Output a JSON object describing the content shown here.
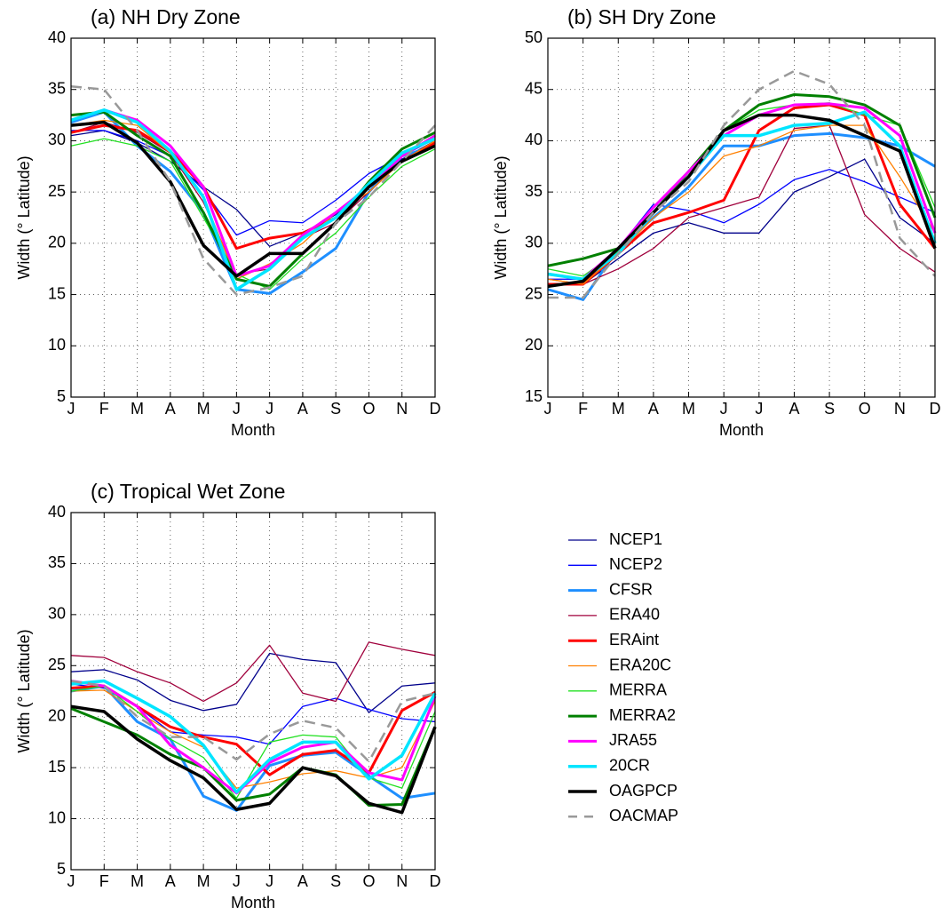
{
  "chart_data": [
    {
      "type": "line",
      "title": "(a)  NH Dry Zone",
      "x_label": "Month",
      "y_label": "Width (° Latitude)",
      "categories": [
        "J",
        "F",
        "M",
        "A",
        "M",
        "J",
        "J",
        "A",
        "S",
        "O",
        "N",
        "D"
      ],
      "ylim": [
        5,
        40
      ],
      "yticks": [
        5,
        10,
        15,
        20,
        25,
        30,
        35,
        40
      ],
      "grid": true,
      "series": [
        {
          "name": "NCEP1",
          "color": "#00008b",
          "width": 1.3,
          "values": [
            30.5,
            31.0,
            29.8,
            28.0,
            25.5,
            23.3,
            19.7,
            21.0,
            22.8,
            25.8,
            28.2,
            30.0
          ]
        },
        {
          "name": "NCEP2",
          "color": "#0000ff",
          "width": 1.3,
          "values": [
            31.0,
            31.0,
            30.0,
            28.5,
            25.2,
            20.8,
            22.2,
            22.0,
            24.2,
            26.8,
            28.5,
            30.2
          ]
        },
        {
          "name": "CFSR",
          "color": "#1e8fff",
          "width": 3,
          "values": [
            31.8,
            32.8,
            29.5,
            27.0,
            23.0,
            15.5,
            15.1,
            17.2,
            19.5,
            25.0,
            28.5,
            29.5
          ]
        },
        {
          "name": "ERA40",
          "color": "#a0003c",
          "width": 1.3,
          "values": [
            30.8,
            31.8,
            30.8,
            28.8,
            24.0,
            17.0,
            17.5,
            20.5,
            22.0,
            25.0,
            28.0,
            30.0
          ]
        },
        {
          "name": "ERAint",
          "color": "#ff0000",
          "width": 3,
          "values": [
            30.8,
            31.5,
            31.0,
            29.0,
            25.5,
            19.5,
            20.5,
            21.0,
            22.5,
            25.5,
            28.0,
            29.8
          ]
        },
        {
          "name": "ERA20C",
          "color": "#ff8000",
          "width": 1.3,
          "values": [
            31.5,
            32.0,
            31.5,
            28.8,
            24.5,
            16.5,
            18.0,
            20.0,
            23.0,
            25.0,
            28.0,
            30.0
          ]
        },
        {
          "name": "MERRA",
          "color": "#22e022",
          "width": 1.3,
          "values": [
            29.5,
            30.2,
            29.5,
            28.0,
            22.5,
            17.0,
            15.5,
            18.5,
            21.0,
            24.5,
            27.5,
            29.2
          ]
        },
        {
          "name": "MERRA2",
          "color": "#008000",
          "width": 3,
          "values": [
            32.5,
            32.8,
            30.5,
            28.5,
            23.0,
            16.5,
            15.8,
            19.0,
            22.0,
            26.0,
            29.2,
            30.8
          ]
        },
        {
          "name": "JRA55",
          "color": "#ff00ff",
          "width": 3,
          "values": [
            32.0,
            33.0,
            32.0,
            29.5,
            25.5,
            16.8,
            17.8,
            20.8,
            23.0,
            25.5,
            28.5,
            30.5
          ]
        },
        {
          "name": "20CR",
          "color": "#00e5ff",
          "width": 3.5,
          "values": [
            32.0,
            33.0,
            31.8,
            29.0,
            24.5,
            15.5,
            17.5,
            20.5,
            22.5,
            25.8,
            28.8,
            30.2
          ]
        },
        {
          "name": "OAGPCP",
          "color": "#000000",
          "width": 3.5,
          "values": [
            31.5,
            31.8,
            29.8,
            26.0,
            19.8,
            16.8,
            19.0,
            19.0,
            22.0,
            25.5,
            28.0,
            29.5
          ]
        },
        {
          "name": "OACMAP",
          "color": "#999999",
          "width": 2.5,
          "dash": true,
          "values": [
            35.3,
            35.0,
            31.0,
            26.0,
            18.5,
            15.0,
            15.7,
            16.8,
            22.0,
            24.5,
            28.0,
            31.5
          ]
        }
      ]
    },
    {
      "type": "line",
      "title": "(b)  SH Dry Zone",
      "x_label": "Month",
      "y_label": "Width (° Latitude)",
      "categories": [
        "J",
        "F",
        "M",
        "A",
        "M",
        "J",
        "J",
        "A",
        "S",
        "O",
        "N",
        "D"
      ],
      "ylim": [
        15,
        50
      ],
      "yticks": [
        15,
        20,
        25,
        30,
        35,
        40,
        45,
        50
      ],
      "grid": true,
      "series": [
        {
          "name": "NCEP1",
          "color": "#00008b",
          "width": 1.3,
          "values": [
            26.0,
            26.0,
            28.5,
            31.0,
            32.0,
            31.0,
            31.0,
            35.0,
            36.5,
            38.2,
            32.5,
            30.0
          ]
        },
        {
          "name": "NCEP2",
          "color": "#0000ff",
          "width": 1.3,
          "values": [
            26.5,
            26.5,
            29.5,
            33.8,
            33.2,
            32.0,
            33.8,
            36.2,
            37.2,
            36.0,
            34.5,
            33.0
          ]
        },
        {
          "name": "CFSR",
          "color": "#1e8fff",
          "width": 3,
          "values": [
            25.5,
            24.5,
            29.5,
            32.5,
            35.5,
            39.5,
            39.5,
            40.5,
            40.7,
            40.3,
            39.5,
            37.5
          ]
        },
        {
          "name": "ERA40",
          "color": "#a0003c",
          "width": 1.3,
          "values": [
            26.5,
            26.0,
            27.5,
            29.5,
            32.5,
            33.5,
            34.5,
            41.2,
            41.5,
            32.8,
            29.5,
            27.2
          ]
        },
        {
          "name": "ERAint",
          "color": "#ff0000",
          "width": 3,
          "values": [
            26.0,
            26.0,
            29.0,
            32.0,
            33.0,
            34.2,
            41.0,
            43.2,
            43.5,
            42.5,
            33.8,
            29.5
          ]
        },
        {
          "name": "ERA20C",
          "color": "#ff8000",
          "width": 1.3,
          "values": [
            26.5,
            26.0,
            29.0,
            32.5,
            35.0,
            38.5,
            39.5,
            41.0,
            41.5,
            41.5,
            36.5,
            31.0
          ]
        },
        {
          "name": "MERRA",
          "color": "#22e022",
          "width": 1.3,
          "values": [
            27.5,
            26.8,
            29.2,
            33.0,
            36.5,
            41.0,
            43.0,
            43.5,
            43.7,
            42.5,
            41.5,
            33.5
          ]
        },
        {
          "name": "MERRA2",
          "color": "#008000",
          "width": 3,
          "values": [
            27.8,
            28.5,
            29.5,
            33.0,
            37.0,
            41.0,
            43.5,
            44.5,
            44.3,
            43.5,
            41.5,
            32.5
          ]
        },
        {
          "name": "JRA55",
          "color": "#ff00ff",
          "width": 3,
          "values": [
            27.0,
            26.5,
            29.5,
            33.5,
            37.0,
            40.5,
            42.5,
            43.5,
            43.6,
            43.2,
            40.5,
            31.0
          ]
        },
        {
          "name": "20CR",
          "color": "#00e5ff",
          "width": 3.5,
          "values": [
            27.0,
            26.5,
            29.0,
            33.0,
            36.5,
            40.5,
            40.5,
            41.5,
            41.7,
            42.8,
            39.5,
            30.0
          ]
        },
        {
          "name": "OAGPCP",
          "color": "#000000",
          "width": 3.5,
          "values": [
            25.8,
            26.3,
            29.5,
            33.0,
            36.5,
            41.0,
            42.5,
            42.5,
            42.0,
            40.5,
            39.0,
            29.5
          ]
        },
        {
          "name": "OACMAP",
          "color": "#999999",
          "width": 2.5,
          "dash": true,
          "values": [
            24.7,
            24.7,
            29.0,
            33.0,
            36.0,
            41.5,
            45.0,
            46.8,
            45.5,
            41.5,
            30.5,
            26.8
          ]
        }
      ]
    },
    {
      "type": "line",
      "title": "(c)  Tropical Wet Zone",
      "x_label": "Month",
      "y_label": "Width (° Latitude)",
      "categories": [
        "J",
        "F",
        "M",
        "A",
        "M",
        "J",
        "J",
        "A",
        "S",
        "O",
        "N",
        "D"
      ],
      "ylim": [
        5,
        40
      ],
      "yticks": [
        5,
        10,
        15,
        20,
        25,
        30,
        35,
        40
      ],
      "grid": true,
      "legend": "right",
      "series": [
        {
          "name": "NCEP1",
          "color": "#00008b",
          "width": 1.3,
          "values": [
            24.4,
            24.6,
            23.6,
            21.6,
            20.6,
            21.2,
            26.2,
            25.6,
            25.3,
            20.4,
            23.0,
            23.3
          ]
        },
        {
          "name": "NCEP2",
          "color": "#0000ff",
          "width": 1.3,
          "values": [
            23.2,
            22.8,
            21.0,
            18.5,
            18.2,
            18.0,
            17.3,
            21.0,
            21.8,
            20.7,
            19.8,
            19.5
          ]
        },
        {
          "name": "CFSR",
          "color": "#1e8fff",
          "width": 3,
          "values": [
            22.5,
            23.0,
            19.5,
            17.8,
            12.2,
            10.8,
            15.2,
            16.2,
            16.5,
            14.2,
            12.0,
            12.5
          ]
        },
        {
          "name": "ERA40",
          "color": "#a0003c",
          "width": 1.3,
          "values": [
            26.0,
            25.8,
            24.4,
            23.3,
            21.5,
            23.3,
            27.0,
            22.3,
            21.5,
            27.3,
            26.6,
            26.0
          ]
        },
        {
          "name": "ERAint",
          "color": "#ff0000",
          "width": 3,
          "values": [
            22.8,
            23.0,
            21.0,
            19.0,
            18.0,
            17.3,
            14.3,
            16.3,
            16.7,
            14.5,
            20.6,
            22.4
          ]
        },
        {
          "name": "ERA20C",
          "color": "#ff8000",
          "width": 1.3,
          "values": [
            22.5,
            22.6,
            20.5,
            18.5,
            17.0,
            13.0,
            13.6,
            14.4,
            14.7,
            14.0,
            15.0,
            21.5
          ]
        },
        {
          "name": "MERRA",
          "color": "#22e022",
          "width": 1.3,
          "values": [
            22.5,
            23.0,
            20.5,
            17.8,
            16.0,
            12.0,
            17.5,
            18.2,
            18.0,
            14.0,
            13.0,
            20.5
          ]
        },
        {
          "name": "MERRA2",
          "color": "#008000",
          "width": 3,
          "values": [
            20.8,
            19.5,
            18.2,
            16.3,
            15.0,
            11.8,
            12.4,
            15.0,
            14.3,
            11.3,
            11.4,
            19.0
          ]
        },
        {
          "name": "JRA55",
          "color": "#ff00ff",
          "width": 3,
          "values": [
            23.5,
            23.0,
            21.0,
            17.2,
            15.0,
            12.5,
            15.5,
            17.0,
            17.5,
            14.5,
            13.8,
            22.0
          ]
        },
        {
          "name": "20CR",
          "color": "#00e5ff",
          "width": 3.5,
          "values": [
            23.2,
            23.5,
            21.8,
            20.0,
            17.2,
            12.6,
            15.8,
            17.5,
            17.5,
            13.9,
            16.2,
            22.3
          ]
        },
        {
          "name": "OAGPCP",
          "color": "#000000",
          "width": 3.5,
          "values": [
            21.0,
            20.5,
            17.8,
            15.7,
            14.0,
            10.9,
            11.5,
            15.0,
            14.2,
            11.5,
            10.6,
            19.0
          ]
        },
        {
          "name": "OACMAP",
          "color": "#999999",
          "width": 2.5,
          "dash": true,
          "values": [
            23.5,
            23.0,
            20.0,
            18.0,
            18.0,
            15.8,
            18.3,
            19.6,
            18.9,
            15.6,
            21.5,
            22.3
          ]
        }
      ]
    }
  ]
}
